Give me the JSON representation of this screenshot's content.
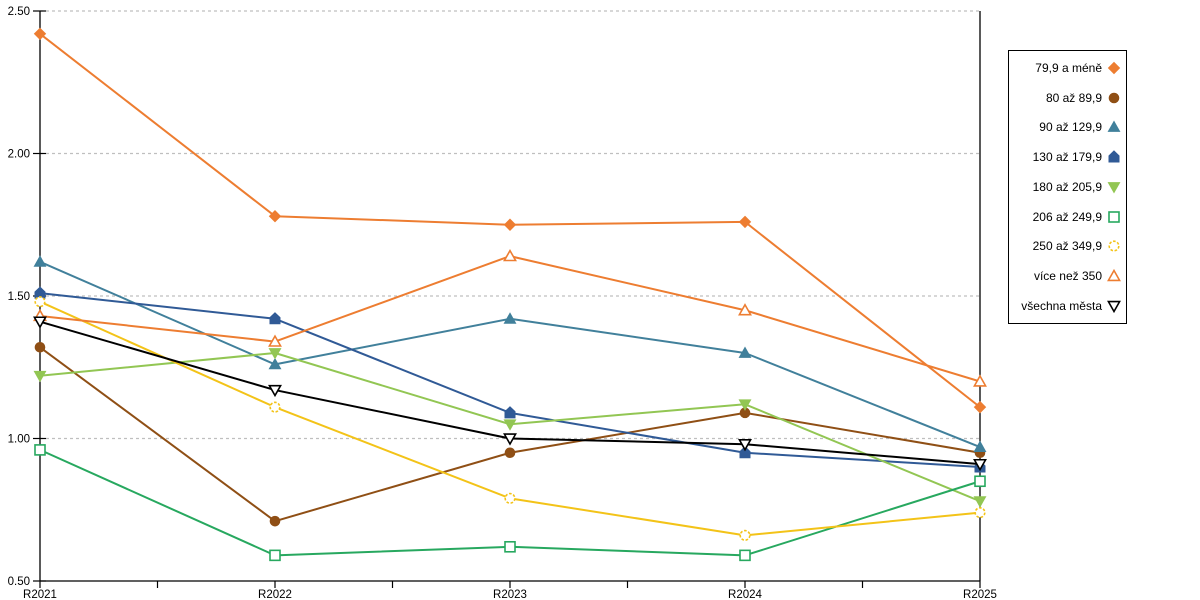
{
  "chart_data": {
    "type": "line",
    "title": "",
    "xlabel": "",
    "ylabel": "",
    "categories": [
      "R2021",
      "R2022",
      "R2023",
      "R2024",
      "R2025"
    ],
    "series": [
      {
        "name": "79,9 a méně",
        "color": "#ED7D31",
        "marker": "diamond",
        "fill": "filled",
        "values": [
          2.42,
          1.78,
          1.75,
          1.76,
          1.11
        ]
      },
      {
        "name": "80 až 89,9",
        "color": "#8F4F15",
        "marker": "circle",
        "fill": "filled",
        "values": [
          1.32,
          0.71,
          0.95,
          1.09,
          0.95
        ]
      },
      {
        "name": "90 až 129,9",
        "color": "#41809B",
        "marker": "triangle-up",
        "fill": "filled",
        "values": [
          1.62,
          1.26,
          1.42,
          1.3,
          0.97
        ]
      },
      {
        "name": "130 až 179,9",
        "color": "#305A96",
        "marker": "pentagon",
        "fill": "filled",
        "values": [
          1.51,
          1.42,
          1.09,
          0.95,
          0.9
        ]
      },
      {
        "name": "180 až 205,9",
        "color": "#92C653",
        "marker": "triangle-down",
        "fill": "filled",
        "values": [
          1.22,
          1.3,
          1.05,
          1.12,
          0.78
        ]
      },
      {
        "name": "206 až 249,9",
        "color": "#27A85F",
        "marker": "square",
        "fill": "open",
        "values": [
          0.96,
          0.59,
          0.62,
          0.59,
          0.85
        ]
      },
      {
        "name": "250 až 349,9",
        "color": "#F3C318",
        "marker": "circle",
        "fill": "open",
        "dashed_marker": true,
        "values": [
          1.48,
          1.11,
          0.79,
          0.66,
          0.74
        ]
      },
      {
        "name": "více než 350",
        "color": "#ED7D31",
        "marker": "triangle-up",
        "fill": "open",
        "values": [
          1.43,
          1.34,
          1.64,
          1.45,
          1.2
        ]
      },
      {
        "name": "všechna města",
        "color": "#000000",
        "marker": "triangle-down",
        "fill": "open",
        "values": [
          1.41,
          1.17,
          1.0,
          0.98,
          0.91
        ]
      }
    ],
    "ylim": [
      0.5,
      2.5
    ],
    "ytick_labels": [
      "0.50",
      "1.00",
      "1.50",
      "2.00",
      "2.50"
    ],
    "grid": "horizontal-dashed",
    "gridline_color": "#BFBFBF",
    "axis_color": "#000000",
    "legend_position": "right"
  }
}
